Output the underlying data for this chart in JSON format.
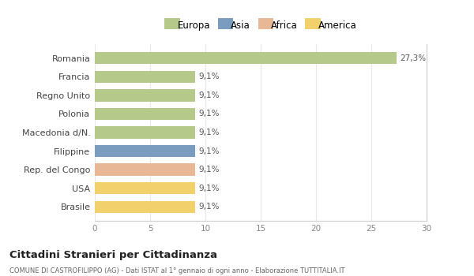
{
  "categories": [
    "Romania",
    "Francia",
    "Regno Unito",
    "Polonia",
    "Macedonia d/N.",
    "Filippine",
    "Rep. del Congo",
    "USA",
    "Brasile"
  ],
  "values": [
    27.3,
    9.1,
    9.1,
    9.1,
    9.1,
    9.1,
    9.1,
    9.1,
    9.1
  ],
  "labels": [
    "27,3%",
    "9,1%",
    "9,1%",
    "9,1%",
    "9,1%",
    "9,1%",
    "9,1%",
    "9,1%",
    "9,1%"
  ],
  "colors": [
    "#b5c98a",
    "#b5c98a",
    "#b5c98a",
    "#b5c98a",
    "#b5c98a",
    "#7a9cbf",
    "#e8b896",
    "#f2d06b",
    "#f2d06b"
  ],
  "legend": [
    {
      "label": "Europa",
      "color": "#b5c98a"
    },
    {
      "label": "Asia",
      "color": "#7a9cbf"
    },
    {
      "label": "Africa",
      "color": "#e8b896"
    },
    {
      "label": "America",
      "color": "#f2d06b"
    }
  ],
  "xlim": [
    0,
    30
  ],
  "xticks": [
    0,
    5,
    10,
    15,
    20,
    25,
    30
  ],
  "title": "Cittadini Stranieri per Cittadinanza",
  "subtitle": "COMUNE DI CASTROFILIPPO (AG) - Dati ISTAT al 1° gennaio di ogni anno - Elaborazione TUTTITALIA.IT",
  "bg_color": "#ffffff",
  "grid_color": "#e8e8e8",
  "bar_height": 0.65
}
